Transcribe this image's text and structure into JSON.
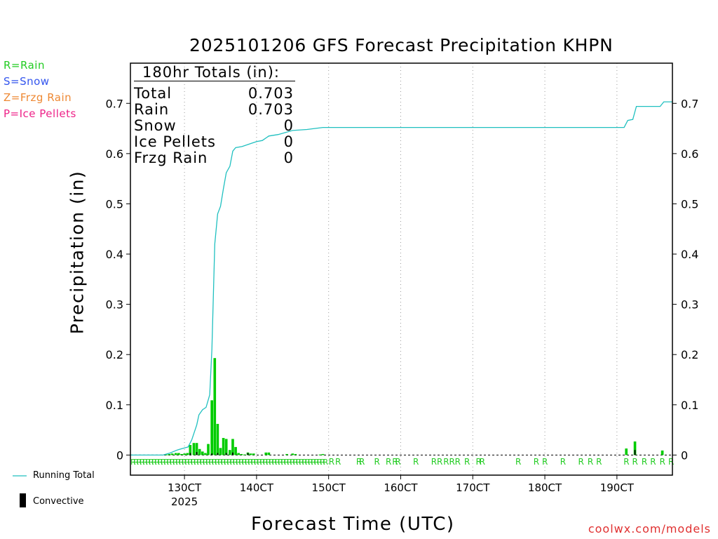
{
  "title": "2025101206 GFS Forecast Precipitation KHPN",
  "legend_left": [
    {
      "label": "R=Rain",
      "color": "#22cc22"
    },
    {
      "label": "S=Snow",
      "color": "#3355ee"
    },
    {
      "label": "Z=Frzg Rain",
      "color": "#ee8833"
    },
    {
      "label": "P=Ice Pellets",
      "color": "#ee2288"
    }
  ],
  "totals": {
    "header": "180hr Totals (in):",
    "rows": [
      {
        "label": "Total",
        "value": "0.703"
      },
      {
        "label": "Rain",
        "value": "0.703"
      },
      {
        "label": "Snow",
        "value": "0"
      },
      {
        "label": "Ice Pellets",
        "value": "0"
      },
      {
        "label": "Frzg Rain",
        "value": "0"
      }
    ]
  },
  "bottom_legend": {
    "running_total": "Running Total",
    "convective": "Convective"
  },
  "credit": "coolwx.com/models",
  "colors": {
    "running_total": "#20c0c0",
    "precip_bar": "#00cc00",
    "convective_bar": "#000000",
    "rain_marker": "#22cc22",
    "grid": "#999999"
  },
  "chart_data": {
    "type": "bar",
    "title": "2025101206 GFS Forecast Precipitation KHPN",
    "xlabel": "Forecast Time (UTC)",
    "ylabel": "Precipitation (in)",
    "xlim": [
      12.25,
      19.77
    ],
    "ylim": [
      -0.04,
      0.78
    ],
    "yticks": [
      0,
      0.1,
      0.2,
      0.3,
      0.4,
      0.5,
      0.6,
      0.7
    ],
    "ytick_labels": [
      "0",
      "0.1",
      "0.2",
      "0.3",
      "0.4",
      "0.5",
      "0.6",
      "0.7"
    ],
    "xticks": [
      {
        "day": 13,
        "label": "130CT",
        "sublabel": "2025"
      },
      {
        "day": 14,
        "label": "140CT"
      },
      {
        "day": 15,
        "label": "150CT"
      },
      {
        "day": 16,
        "label": "160CT"
      },
      {
        "day": 17,
        "label": "170CT"
      },
      {
        "day": 18,
        "label": "180CT"
      },
      {
        "day": 19,
        "label": "190CT"
      }
    ],
    "bar_series": {
      "name": "Precipitation",
      "points": [
        {
          "t": 12.75,
          "v": 0.001
        },
        {
          "t": 12.79,
          "v": 0.002
        },
        {
          "t": 12.83,
          "v": 0.003
        },
        {
          "t": 12.88,
          "v": 0.004
        },
        {
          "t": 12.92,
          "v": 0.004
        },
        {
          "t": 12.96,
          "v": 0.002
        },
        {
          "t": 13.0,
          "v": 0.003
        },
        {
          "t": 13.04,
          "v": 0.004
        },
        {
          "t": 13.08,
          "v": 0.02
        },
        {
          "t": 13.13,
          "v": 0.024
        },
        {
          "t": 13.17,
          "v": 0.024
        },
        {
          "t": 13.21,
          "v": 0.012
        },
        {
          "t": 13.25,
          "v": 0.007
        },
        {
          "t": 13.29,
          "v": 0.004
        },
        {
          "t": 13.33,
          "v": 0.022
        },
        {
          "t": 13.38,
          "v": 0.109
        },
        {
          "t": 13.42,
          "v": 0.193
        },
        {
          "t": 13.46,
          "v": 0.062
        },
        {
          "t": 13.5,
          "v": 0.014
        },
        {
          "t": 13.54,
          "v": 0.034
        },
        {
          "t": 13.58,
          "v": 0.032
        },
        {
          "t": 13.63,
          "v": 0.01
        },
        {
          "t": 13.67,
          "v": 0.032
        },
        {
          "t": 13.71,
          "v": 0.016
        },
        {
          "t": 13.75,
          "v": 0.004
        },
        {
          "t": 13.79,
          "v": 0.002
        },
        {
          "t": 13.83,
          "v": 0.001
        },
        {
          "t": 13.88,
          "v": 0.005
        },
        {
          "t": 13.92,
          "v": 0.003
        },
        {
          "t": 13.96,
          "v": 0.003
        },
        {
          "t": 14.13,
          "v": 0.005
        },
        {
          "t": 14.17,
          "v": 0.005
        },
        {
          "t": 14.42,
          "v": 0.002
        },
        {
          "t": 14.5,
          "v": 0.003
        },
        {
          "t": 14.54,
          "v": 0.002
        },
        {
          "t": 14.88,
          "v": 0.001
        },
        {
          "t": 14.92,
          "v": 0.002
        },
        {
          "t": 19.13,
          "v": 0.013
        },
        {
          "t": 19.25,
          "v": 0.027
        },
        {
          "t": 19.63,
          "v": 0.009
        }
      ]
    },
    "convective_series": {
      "name": "Convective",
      "points": [
        {
          "t": 13.08,
          "v": 0.004
        },
        {
          "t": 13.17,
          "v": 0.006
        },
        {
          "t": 13.38,
          "v": 0.003
        },
        {
          "t": 13.46,
          "v": 0.004
        },
        {
          "t": 13.58,
          "v": 0.004
        },
        {
          "t": 13.67,
          "v": 0.005
        },
        {
          "t": 13.88,
          "v": 0.004
        },
        {
          "t": 19.25,
          "v": 0.01
        }
      ]
    },
    "line_series": {
      "name": "Running Total",
      "points": [
        {
          "t": 12.25,
          "v": 0
        },
        {
          "t": 12.7,
          "v": 0
        },
        {
          "t": 12.8,
          "v": 0.004
        },
        {
          "t": 12.9,
          "v": 0.01
        },
        {
          "t": 13.0,
          "v": 0.014
        },
        {
          "t": 13.05,
          "v": 0.016
        },
        {
          "t": 13.1,
          "v": 0.03
        },
        {
          "t": 13.17,
          "v": 0.06
        },
        {
          "t": 13.2,
          "v": 0.08
        },
        {
          "t": 13.25,
          "v": 0.09
        },
        {
          "t": 13.3,
          "v": 0.095
        },
        {
          "t": 13.35,
          "v": 0.12
        },
        {
          "t": 13.38,
          "v": 0.21
        },
        {
          "t": 13.42,
          "v": 0.42
        },
        {
          "t": 13.46,
          "v": 0.48
        },
        {
          "t": 13.5,
          "v": 0.495
        },
        {
          "t": 13.54,
          "v": 0.53
        },
        {
          "t": 13.58,
          "v": 0.562
        },
        {
          "t": 13.63,
          "v": 0.575
        },
        {
          "t": 13.67,
          "v": 0.605
        },
        {
          "t": 13.71,
          "v": 0.612
        },
        {
          "t": 13.8,
          "v": 0.614
        },
        {
          "t": 13.92,
          "v": 0.62
        },
        {
          "t": 14.0,
          "v": 0.624
        },
        {
          "t": 14.08,
          "v": 0.626
        },
        {
          "t": 14.17,
          "v": 0.635
        },
        {
          "t": 14.3,
          "v": 0.638
        },
        {
          "t": 14.5,
          "v": 0.646
        },
        {
          "t": 14.7,
          "v": 0.648
        },
        {
          "t": 14.92,
          "v": 0.652
        },
        {
          "t": 19.1,
          "v": 0.652
        },
        {
          "t": 19.15,
          "v": 0.666
        },
        {
          "t": 19.22,
          "v": 0.668
        },
        {
          "t": 19.27,
          "v": 0.694
        },
        {
          "t": 19.6,
          "v": 0.694
        },
        {
          "t": 19.65,
          "v": 0.703
        },
        {
          "t": 19.77,
          "v": 0.703
        }
      ]
    },
    "rain_markers": {
      "symbol": "R",
      "dense_range": [
        12.29,
        14.96
      ],
      "dense_step": 0.0417,
      "sparse_times": [
        15.04,
        15.13,
        15.42,
        15.46,
        15.67,
        15.83,
        15.92,
        15.96,
        16.21,
        16.46,
        16.54,
        16.63,
        16.71,
        16.79,
        16.92,
        17.08,
        17.13,
        17.63,
        17.88,
        18.0,
        18.25,
        18.5,
        18.63,
        18.75,
        19.13,
        19.25,
        19.38,
        19.5,
        19.63,
        19.75
      ]
    }
  }
}
